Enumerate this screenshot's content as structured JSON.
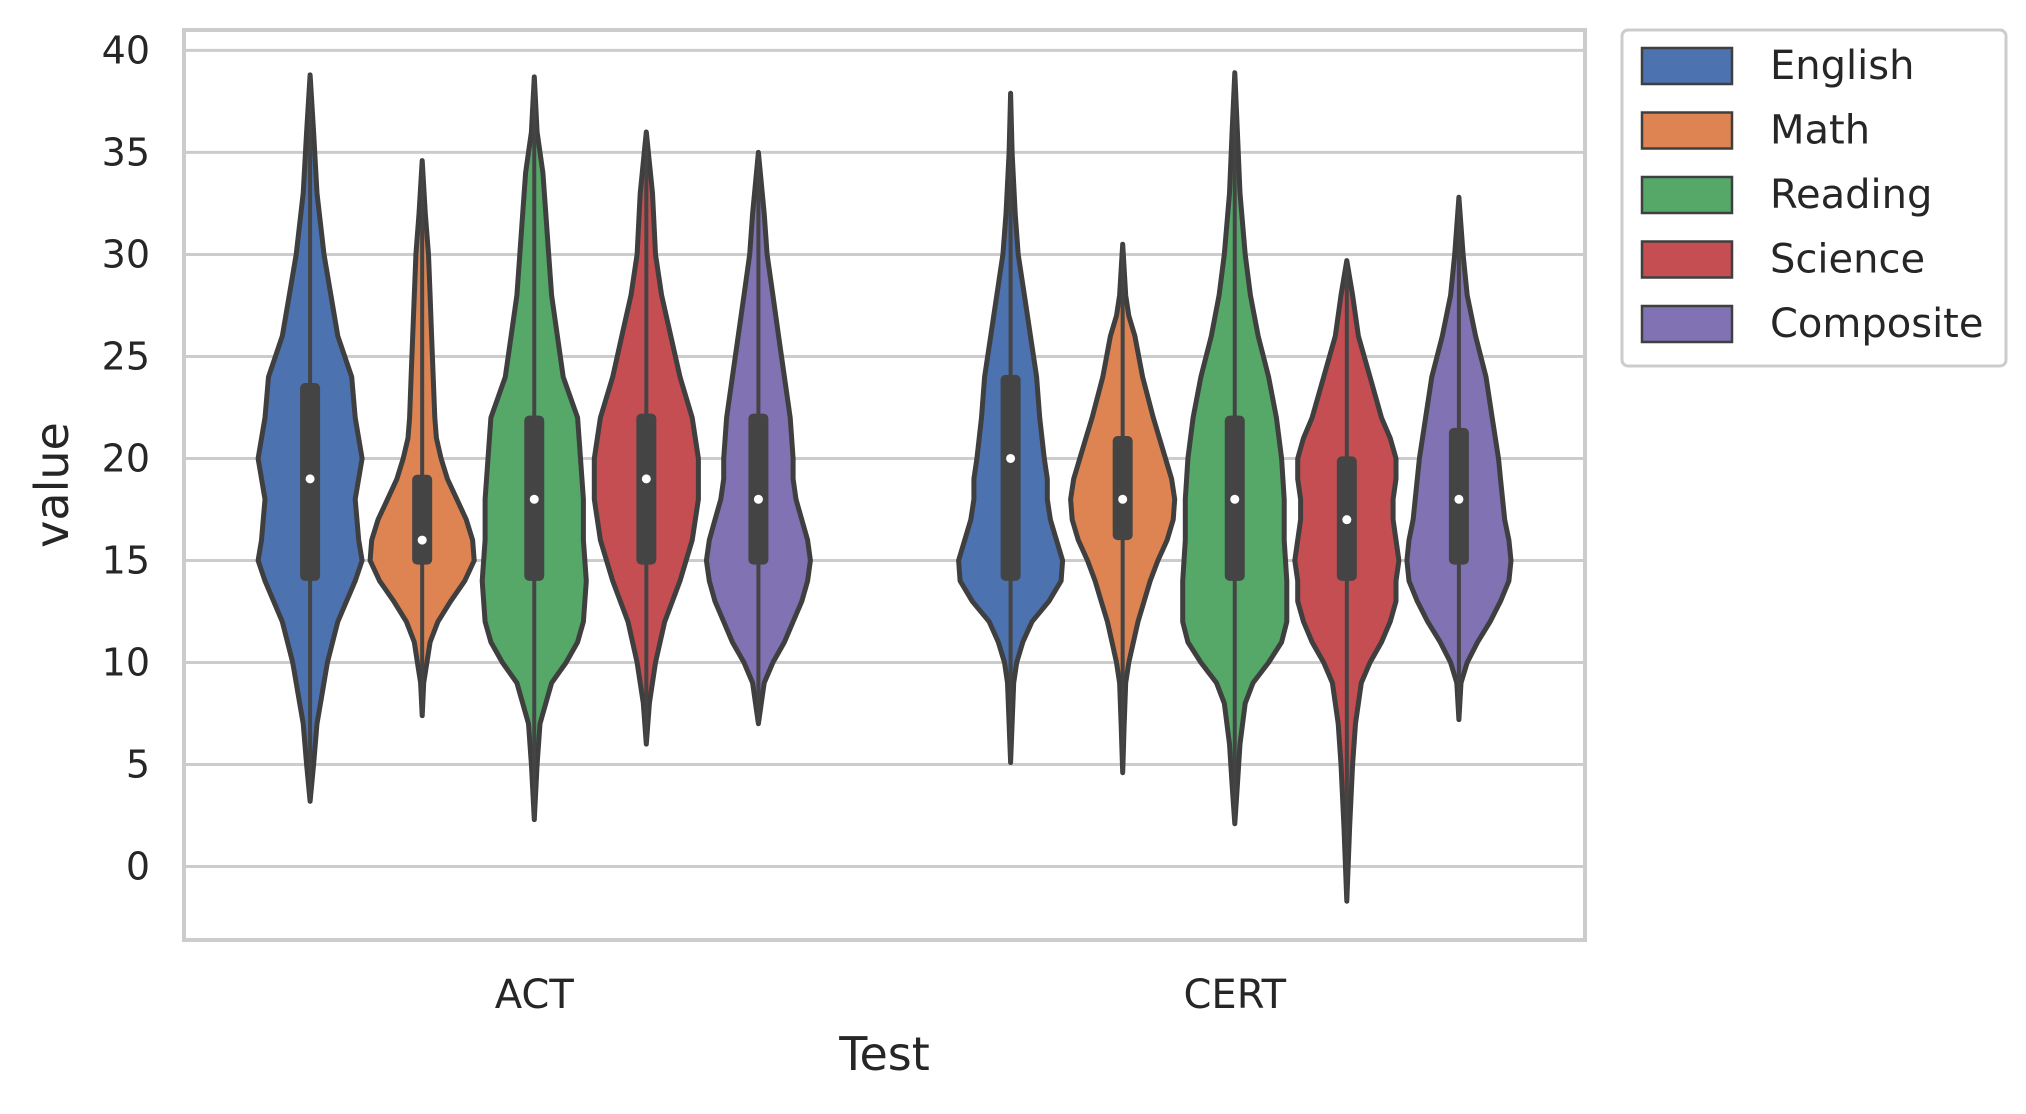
{
  "chart_data": {
    "type": "violin",
    "xlabel": "Test",
    "ylabel": "value",
    "ylim": [
      -3.6,
      41
    ],
    "yticks": [
      0,
      5,
      10,
      15,
      20,
      25,
      30,
      35,
      40
    ],
    "grid": true,
    "legend_position": "outside-top-right",
    "categories": [
      "ACT",
      "CERT"
    ],
    "series": [
      {
        "name": "English",
        "color": "#4c72b0",
        "groups": [
          {
            "min": 3.2,
            "max": 38.8,
            "q1": 14,
            "median": 19,
            "q3": 23.7,
            "profile": [
              [
                3.2,
                0
              ],
              [
                5,
                1
              ],
              [
                7,
                2
              ],
              [
                8,
                3
              ],
              [
                10,
                5
              ],
              [
                12,
                8
              ],
              [
                14,
                13
              ],
              [
                15,
                15
              ],
              [
                16,
                14
              ],
              [
                18,
                13
              ],
              [
                20,
                15
              ],
              [
                22,
                13
              ],
              [
                24,
                12
              ],
              [
                26,
                8
              ],
              [
                28,
                6
              ],
              [
                30,
                4
              ],
              [
                33,
                2
              ],
              [
                36,
                1
              ],
              [
                38.8,
                0
              ]
            ]
          },
          {
            "min": 5.1,
            "max": 37.9,
            "q1": 14,
            "median": 20,
            "q3": 24.1,
            "profile": [
              [
                5.1,
                0
              ],
              [
                7,
                1
              ],
              [
                9,
                2
              ],
              [
                10,
                4
              ],
              [
                11,
                8
              ],
              [
                12,
                14
              ],
              [
                13,
                25
              ],
              [
                14,
                33
              ],
              [
                15,
                34
              ],
              [
                16,
                30
              ],
              [
                17,
                26
              ],
              [
                18,
                24
              ],
              [
                19,
                24
              ],
              [
                20,
                22
              ],
              [
                22,
                19
              ],
              [
                24,
                17
              ],
              [
                26,
                13
              ],
              [
                28,
                9
              ],
              [
                30,
                5
              ],
              [
                32,
                3
              ],
              [
                35,
                1
              ],
              [
                37.9,
                0
              ]
            ]
          }
        ]
      },
      {
        "name": "Math",
        "color": "#dd8452",
        "groups": [
          {
            "min": 7.4,
            "max": 34.6,
            "q1": 14.8,
            "median": 16,
            "q3": 19.2,
            "profile": [
              [
                7.4,
                0
              ],
              [
                9,
                1
              ],
              [
                10,
                3
              ],
              [
                11,
                5
              ],
              [
                12,
                10
              ],
              [
                13,
                18
              ],
              [
                14,
                27
              ],
              [
                15,
                33
              ],
              [
                16,
                32
              ],
              [
                17,
                28
              ],
              [
                18,
                22
              ],
              [
                19,
                16
              ],
              [
                20,
                12
              ],
              [
                21,
                9
              ],
              [
                22,
                8
              ],
              [
                24,
                7
              ],
              [
                26,
                6
              ],
              [
                28,
                5
              ],
              [
                30,
                4
              ],
              [
                32,
                2
              ],
              [
                34.6,
                0
              ]
            ]
          },
          {
            "min": 4.6,
            "max": 30.5,
            "q1": 16,
            "median": 18,
            "q3": 21.1,
            "profile": [
              [
                4.6,
                0
              ],
              [
                7,
                1
              ],
              [
                9,
                2
              ],
              [
                10,
                4
              ],
              [
                11,
                7
              ],
              [
                12,
                10
              ],
              [
                13,
                14
              ],
              [
                14,
                18
              ],
              [
                15,
                23
              ],
              [
                16,
                29
              ],
              [
                17,
                33
              ],
              [
                18,
                34
              ],
              [
                19,
                32
              ],
              [
                20,
                28
              ],
              [
                21,
                24
              ],
              [
                22,
                20
              ],
              [
                24,
                13
              ],
              [
                26,
                8
              ],
              [
                27,
                4
              ],
              [
                28,
                2
              ],
              [
                30.5,
                0
              ]
            ]
          }
        ]
      },
      {
        "name": "Reading",
        "color": "#55a868",
        "groups": [
          {
            "min": 2.3,
            "max": 38.7,
            "q1": 14,
            "median": 18,
            "q3": 22.1,
            "profile": [
              [
                2.3,
                0
              ],
              [
                5,
                1
              ],
              [
                7,
                2
              ],
              [
                9,
                6
              ],
              [
                10,
                11
              ],
              [
                11,
                15
              ],
              [
                12,
                17
              ],
              [
                14,
                18
              ],
              [
                16,
                17
              ],
              [
                18,
                17
              ],
              [
                20,
                16
              ],
              [
                22,
                15
              ],
              [
                24,
                10
              ],
              [
                26,
                8
              ],
              [
                28,
                6
              ],
              [
                30,
                5
              ],
              [
                32,
                4
              ],
              [
                34,
                3
              ],
              [
                36,
                1
              ],
              [
                38.7,
                0
              ]
            ]
          },
          {
            "min": 2.1,
            "max": 38.9,
            "q1": 14,
            "median": 18,
            "q3": 22.1,
            "profile": [
              [
                2.1,
                0
              ],
              [
                4,
                1
              ],
              [
                6,
                2
              ],
              [
                8,
                4
              ],
              [
                9,
                7
              ],
              [
                10,
                13
              ],
              [
                11,
                18
              ],
              [
                12,
                20
              ],
              [
                14,
                20
              ],
              [
                16,
                19
              ],
              [
                18,
                19
              ],
              [
                20,
                18
              ],
              [
                22,
                16
              ],
              [
                24,
                13
              ],
              [
                26,
                9
              ],
              [
                28,
                6
              ],
              [
                30,
                4
              ],
              [
                33,
                2
              ],
              [
                36,
                1
              ],
              [
                38.9,
                0
              ]
            ]
          }
        ]
      },
      {
        "name": "Science",
        "color": "#c44e52",
        "groups": [
          {
            "min": 6,
            "max": 36,
            "q1": 14.8,
            "median": 19,
            "q3": 22.2,
            "profile": [
              [
                6,
                0
              ],
              [
                8,
                1
              ],
              [
                10,
                3
              ],
              [
                12,
                6
              ],
              [
                14,
                11
              ],
              [
                16,
                15
              ],
              [
                18,
                17
              ],
              [
                20,
                17
              ],
              [
                22,
                15
              ],
              [
                24,
                11
              ],
              [
                26,
                8
              ],
              [
                28,
                5
              ],
              [
                30,
                3
              ],
              [
                33,
                2
              ],
              [
                36,
                0
              ]
            ]
          },
          {
            "min": -1.7,
            "max": 29.7,
            "q1": 14,
            "median": 17,
            "q3": 20.1,
            "profile": [
              [
                -1.7,
                0
              ],
              [
                2,
                1
              ],
              [
                5,
                2
              ],
              [
                7,
                3
              ],
              [
                9,
                5
              ],
              [
                10,
                8
              ],
              [
                11,
                12
              ],
              [
                12,
                15
              ],
              [
                13,
                17
              ],
              [
                14,
                17
              ],
              [
                15,
                18
              ],
              [
                16,
                17
              ],
              [
                17,
                16
              ],
              [
                18,
                16
              ],
              [
                19,
                17
              ],
              [
                20,
                17
              ],
              [
                21,
                15
              ],
              [
                22,
                12
              ],
              [
                24,
                8
              ],
              [
                26,
                4
              ],
              [
                28,
                2
              ],
              [
                29.7,
                0
              ]
            ]
          }
        ]
      },
      {
        "name": "Composite",
        "color": "#8172b3",
        "groups": [
          {
            "min": 7,
            "max": 35,
            "q1": 14.8,
            "median": 18,
            "q3": 22.2,
            "profile": [
              [
                7,
                0
              ],
              [
                8,
                1
              ],
              [
                9,
                2
              ],
              [
                10,
                5
              ],
              [
                11,
                9
              ],
              [
                12,
                12
              ],
              [
                13,
                15
              ],
              [
                14,
                17
              ],
              [
                15,
                18
              ],
              [
                16,
                17
              ],
              [
                17,
                15
              ],
              [
                18,
                13
              ],
              [
                19,
                12
              ],
              [
                20,
                12
              ],
              [
                22,
                11
              ],
              [
                24,
                9
              ],
              [
                26,
                7
              ],
              [
                28,
                5
              ],
              [
                30,
                3
              ],
              [
                32,
                2
              ],
              [
                35,
                0
              ]
            ]
          },
          {
            "min": 7.2,
            "max": 32.8,
            "q1": 14.8,
            "median": 18,
            "q3": 21.5,
            "profile": [
              [
                7.2,
                0
              ],
              [
                9,
                1
              ],
              [
                10,
                4
              ],
              [
                11,
                9
              ],
              [
                12,
                15
              ],
              [
                13,
                20
              ],
              [
                14,
                24
              ],
              [
                15,
                25
              ],
              [
                16,
                24
              ],
              [
                17,
                22
              ],
              [
                18,
                21
              ],
              [
                19,
                20
              ],
              [
                20,
                19
              ],
              [
                22,
                16
              ],
              [
                24,
                13
              ],
              [
                26,
                8
              ],
              [
                28,
                4
              ],
              [
                30,
                2
              ],
              [
                32.8,
                0
              ]
            ]
          }
        ]
      }
    ]
  }
}
